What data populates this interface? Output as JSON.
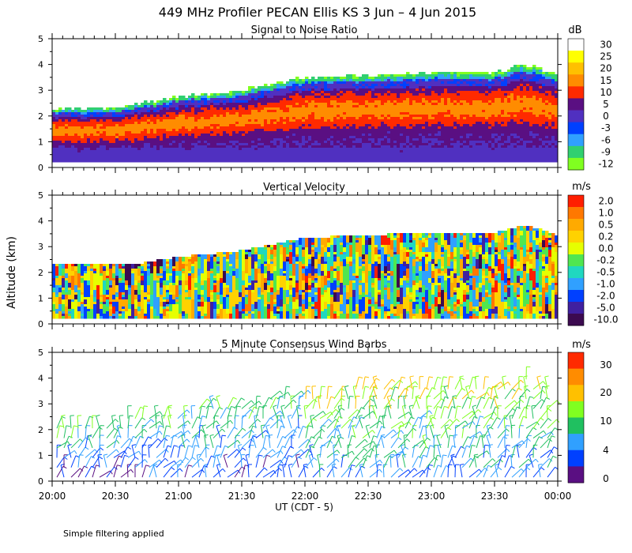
{
  "figure": {
    "title": "449 MHz Profiler PECAN Ellis KS   3 Jun –  4 Jun 2015",
    "ylabel": "Altitude (km)",
    "xlabel": "UT  (CDT - 5)",
    "footnote": "Simple filtering applied",
    "x_ticks": [
      "20:00",
      "20:30",
      "21:00",
      "21:30",
      "22:00",
      "22:30",
      "23:00",
      "23:30",
      "00:00"
    ]
  },
  "chart_data": [
    {
      "type": "heatmap",
      "title": "Signal to Noise Ratio",
      "ylabel": "Altitude (km)",
      "ylim": [
        0,
        5
      ],
      "xlim_ut_hours": [
        20,
        24
      ],
      "y_ticks": [
        "0",
        "1",
        "2",
        "3",
        "4",
        "5"
      ],
      "colorbar_unit": "dB",
      "colorbar_labels": [
        "30",
        "25",
        "20",
        "15",
        "10",
        "5",
        "0",
        "-3",
        "-6",
        "-9",
        "-12"
      ],
      "colorbar_colors": [
        "#ffffff",
        "#ffff00",
        "#ffc000",
        "#ff8c00",
        "#ff2a00",
        "#5a0f82",
        "#5030c0",
        "#0040ff",
        "#30a0ff",
        "#30d070",
        "#80ff20"
      ],
      "echo_top_km": [
        {
          "t": 20.0,
          "h": 2.25
        },
        {
          "t": 20.5,
          "h": 2.35
        },
        {
          "t": 21.0,
          "h": 2.75
        },
        {
          "t": 21.5,
          "h": 3.0
        },
        {
          "t": 22.0,
          "h": 3.5
        },
        {
          "t": 22.5,
          "h": 3.6
        },
        {
          "t": 23.0,
          "h": 3.7
        },
        {
          "t": 23.5,
          "h": 3.7
        },
        {
          "t": 23.75,
          "h": 4.0
        },
        {
          "t": 24.0,
          "h": 3.6
        }
      ]
    },
    {
      "type": "heatmap",
      "title": "Vertical Velocity",
      "ylabel": "Altitude (km)",
      "ylim": [
        0,
        5
      ],
      "xlim_ut_hours": [
        20,
        24
      ],
      "y_ticks": [
        "0",
        "1",
        "2",
        "3",
        "4",
        "5"
      ],
      "colorbar_unit": "m/s",
      "colorbar_labels": [
        "2.0",
        "1.0",
        "0.5",
        "0.2",
        "0.0",
        "-0.2",
        "-0.5",
        "-1.0",
        "-2.0",
        "-5.0",
        "-10.0"
      ],
      "colorbar_colors": [
        "#ff1e00",
        "#ff7800",
        "#ffaa00",
        "#ffd200",
        "#e6ff00",
        "#50e650",
        "#20d8c0",
        "#30a0ff",
        "#0040ff",
        "#4020a0",
        "#3c0a50"
      ]
    },
    {
      "type": "wind_barbs",
      "title": "5 Minute Consensus Wind Barbs",
      "ylabel": "Altitude (km)",
      "ylim": [
        0,
        5
      ],
      "xlim_ut_hours": [
        20,
        24
      ],
      "y_ticks": [
        "0",
        "1",
        "2",
        "3",
        "4",
        "5"
      ],
      "colorbar_unit": "m/s",
      "colorbar_labels": [
        "30",
        "20",
        "10",
        "4",
        "0"
      ],
      "colorbar_colors": [
        "#ff2a00",
        "#ff8c00",
        "#ffc000",
        "#80ff20",
        "#20c060",
        "#30a0ff",
        "#0040ff",
        "#5a0f82"
      ]
    }
  ]
}
